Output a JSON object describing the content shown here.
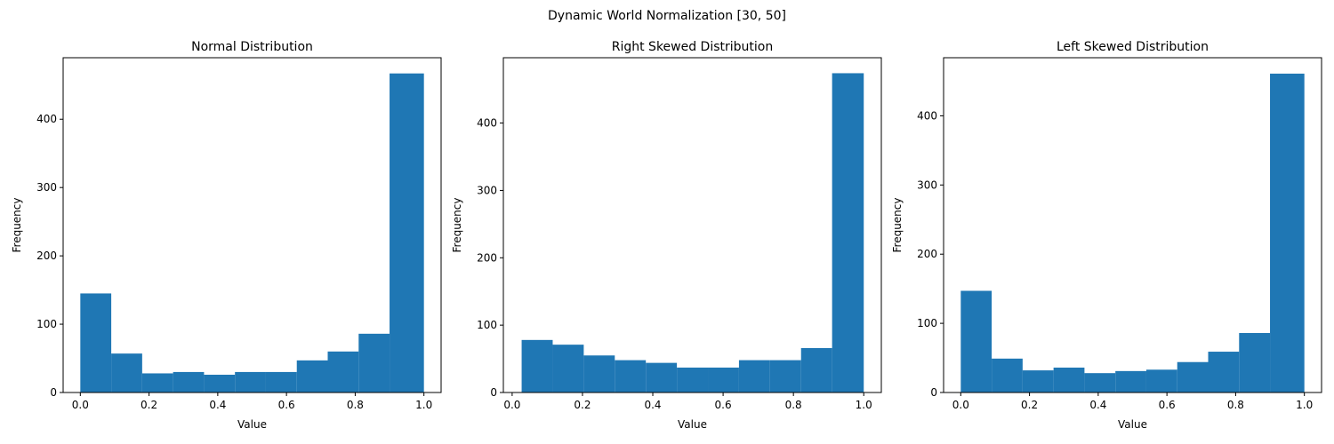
{
  "figure": {
    "title": "Dynamic World Normalization [30, 50]"
  },
  "chart_data": [
    {
      "type": "bar",
      "title": "Normal Distribution",
      "xlabel": "Value",
      "ylabel": "Frequency",
      "xlim": [
        -0.05,
        1.05
      ],
      "ylim": [
        0,
        490
      ],
      "xticks": [
        "0.0",
        "0.2",
        "0.4",
        "0.6",
        "0.8",
        "1.0"
      ],
      "yticks": [
        "0",
        "100",
        "200",
        "300",
        "400"
      ],
      "bin_edges": [
        0.0,
        0.09,
        0.18,
        0.27,
        0.36,
        0.45,
        0.54,
        0.63,
        0.72,
        0.81,
        0.9,
        1.0
      ],
      "values": [
        145,
        57,
        28,
        30,
        26,
        30,
        30,
        47,
        60,
        86,
        467
      ],
      "color": "#1f77b4",
      "grid": false
    },
    {
      "type": "bar",
      "title": "Right Skewed Distribution",
      "xlabel": "Value",
      "ylabel": "Frequency",
      "xlim": [
        -0.025,
        1.05
      ],
      "ylim": [
        0,
        497
      ],
      "xticks": [
        "0.0",
        "0.2",
        "0.4",
        "0.6",
        "0.8",
        "1.0"
      ],
      "yticks": [
        "0",
        "100",
        "200",
        "300",
        "400"
      ],
      "bin_edges": [
        0.027,
        0.1153,
        0.2036,
        0.2919,
        0.3802,
        0.4685,
        0.5568,
        0.6451,
        0.7334,
        0.8217,
        0.91,
        1.0
      ],
      "values": [
        78,
        71,
        55,
        48,
        44,
        37,
        37,
        48,
        48,
        66,
        474
      ],
      "color": "#1f77b4",
      "grid": false
    },
    {
      "type": "bar",
      "title": "Left Skewed Distribution",
      "xlabel": "Value",
      "ylabel": "Frequency",
      "xlim": [
        -0.05,
        1.05
      ],
      "ylim": [
        0,
        484
      ],
      "xticks": [
        "0.0",
        "0.2",
        "0.4",
        "0.6",
        "0.8",
        "1.0"
      ],
      "yticks": [
        "0",
        "100",
        "200",
        "300",
        "400"
      ],
      "bin_edges": [
        0.0,
        0.09,
        0.18,
        0.27,
        0.36,
        0.45,
        0.54,
        0.63,
        0.72,
        0.81,
        0.9,
        1.0
      ],
      "values": [
        147,
        49,
        32,
        36,
        28,
        31,
        33,
        44,
        59,
        86,
        461
      ],
      "color": "#1f77b4",
      "grid": false
    }
  ]
}
